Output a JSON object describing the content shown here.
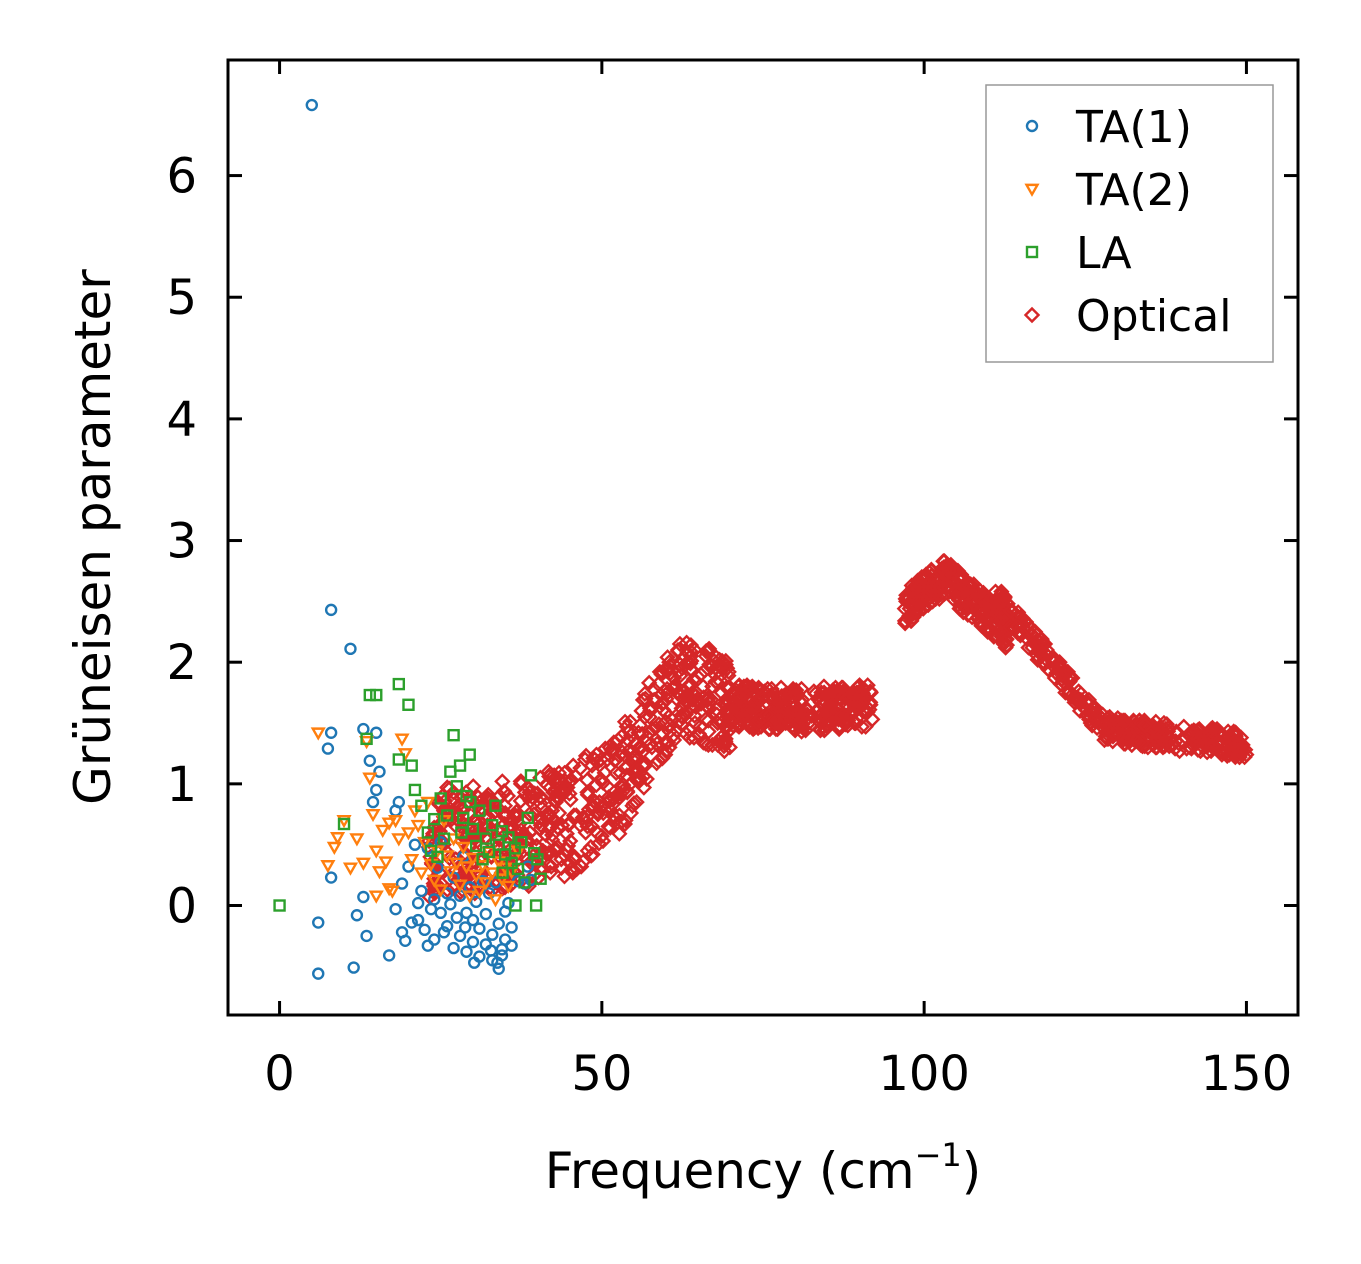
{
  "chart_data": {
    "type": "scatter",
    "xlabel": "Frequency (cm",
    "xlabel_superscript": "−1",
    "xlabel_suffix": ")",
    "ylabel": "Grüneisen parameter",
    "xlim": [
      -8,
      158
    ],
    "ylim": [
      -0.9,
      6.95
    ],
    "xticks": [
      0,
      50,
      100,
      150
    ],
    "yticks": [
      0,
      1,
      2,
      3,
      4,
      5,
      6
    ],
    "legend_position": "top-right",
    "series": [
      {
        "name": "TA(1)",
        "marker": "circle",
        "color": "#1f77b4",
        "points": [
          [
            5,
            6.58
          ],
          [
            8,
            2.43
          ],
          [
            11,
            2.11
          ],
          [
            8,
            1.42
          ],
          [
            7.5,
            1.29
          ],
          [
            13,
            1.45
          ],
          [
            15,
            1.42
          ],
          [
            14,
            1.19
          ],
          [
            15.5,
            1.1
          ],
          [
            15,
            0.95
          ],
          [
            14.5,
            0.85
          ],
          [
            8,
            0.23
          ],
          [
            6,
            -0.14
          ],
          [
            6,
            -0.56
          ],
          [
            11.5,
            -0.51
          ],
          [
            12,
            -0.08
          ],
          [
            13,
            0.07
          ],
          [
            13.5,
            -0.25
          ],
          [
            17,
            -0.41
          ],
          [
            18,
            -0.03
          ],
          [
            18,
            0.78
          ],
          [
            18.5,
            0.85
          ],
          [
            19,
            0.18
          ],
          [
            19,
            -0.22
          ],
          [
            19.5,
            -0.29
          ],
          [
            20,
            0.32
          ],
          [
            20.5,
            -0.14
          ],
          [
            21,
            0.5
          ],
          [
            21.5,
            0.02
          ],
          [
            21.5,
            -0.12
          ],
          [
            22,
            0.12
          ],
          [
            22.5,
            -0.2
          ],
          [
            23,
            0.47
          ],
          [
            23,
            -0.33
          ],
          [
            23.5,
            -0.03
          ],
          [
            24,
            0.05
          ],
          [
            24,
            -0.28
          ],
          [
            24.5,
            0.31
          ],
          [
            25,
            0.52
          ],
          [
            25,
            -0.06
          ],
          [
            25.5,
            -0.22
          ],
          [
            26,
            0.1
          ],
          [
            26,
            -0.17
          ],
          [
            26.5,
            0.01
          ],
          [
            27,
            0.23
          ],
          [
            27,
            -0.35
          ],
          [
            27.5,
            -0.1
          ],
          [
            28,
            0.08
          ],
          [
            28,
            -0.25
          ],
          [
            28.5,
            0.4
          ],
          [
            29,
            -0.06
          ],
          [
            29,
            -0.38
          ],
          [
            29.5,
            0.15
          ],
          [
            30,
            -0.12
          ],
          [
            30,
            -0.3
          ],
          [
            30.5,
            0.03
          ],
          [
            31,
            -0.19
          ],
          [
            31,
            -0.42
          ],
          [
            31.5,
            0.2
          ],
          [
            32,
            -0.07
          ],
          [
            32,
            -0.32
          ],
          [
            32.5,
            0.1
          ],
          [
            33,
            -0.24
          ],
          [
            33,
            -0.45
          ],
          [
            33.5,
            0.19
          ],
          [
            34,
            -0.15
          ],
          [
            34,
            -0.52
          ],
          [
            34.5,
            -0.36
          ],
          [
            35,
            -0.05
          ],
          [
            35,
            -0.28
          ],
          [
            35.5,
            0.02
          ],
          [
            36,
            -0.18
          ],
          [
            36,
            -0.33
          ],
          [
            37,
            0.2
          ],
          [
            38,
            0.18
          ],
          [
            38.5,
            0.32
          ],
          [
            39,
            0.21
          ],
          [
            34.5,
            -0.41
          ],
          [
            33.8,
            -0.47
          ],
          [
            32.8,
            -0.37
          ],
          [
            30.2,
            -0.47
          ],
          [
            28.8,
            -0.18
          ]
        ]
      },
      {
        "name": "TA(2)",
        "marker": "triangle-down",
        "color": "#ff7f0e",
        "points": [
          [
            6,
            1.42
          ],
          [
            7.5,
            0.33
          ],
          [
            8.5,
            0.48
          ],
          [
            9,
            0.56
          ],
          [
            10,
            0.7
          ],
          [
            11,
            0.31
          ],
          [
            12,
            0.55
          ],
          [
            13,
            0.35
          ],
          [
            13.5,
            1.35
          ],
          [
            14,
            1.05
          ],
          [
            14.5,
            0.75
          ],
          [
            15,
            0.45
          ],
          [
            15.5,
            0.28
          ],
          [
            16,
            0.62
          ],
          [
            16.5,
            0.36
          ],
          [
            17,
            0.68
          ],
          [
            17.5,
            0.12
          ],
          [
            18,
            0.7
          ],
          [
            18.5,
            0.55
          ],
          [
            19,
            1.37
          ],
          [
            19.5,
            1.25
          ],
          [
            20,
            0.6
          ],
          [
            20.5,
            0.38
          ],
          [
            21,
            0.78
          ],
          [
            21.5,
            0.66
          ],
          [
            22,
            0.27
          ],
          [
            22.5,
            0.52
          ],
          [
            23,
            0.85
          ],
          [
            23.5,
            0.34
          ],
          [
            24,
            0.21
          ],
          [
            24.5,
            0.45
          ],
          [
            25,
            0.13
          ],
          [
            25.5,
            0.7
          ],
          [
            26,
            0.41
          ],
          [
            26.5,
            0.28
          ],
          [
            27,
            0.55
          ],
          [
            27.5,
            0.35
          ],
          [
            28,
            0.17
          ],
          [
            28.5,
            0.48
          ],
          [
            29,
            0.32
          ],
          [
            29.5,
            0.08
          ],
          [
            30,
            0.39
          ],
          [
            30.5,
            0.25
          ],
          [
            31,
            0.12
          ],
          [
            31.5,
            0.33
          ],
          [
            32,
            0.19
          ],
          [
            32.5,
            0.44
          ],
          [
            33,
            0.27
          ],
          [
            33.5,
            0.05
          ],
          [
            34,
            0.36
          ],
          [
            34.5,
            0.22
          ],
          [
            35,
            0.31
          ],
          [
            35.5,
            0.16
          ],
          [
            36,
            0.28
          ],
          [
            15,
            0.08
          ],
          [
            17,
            0.14
          ],
          [
            37,
            0.45
          ]
        ]
      },
      {
        "name": "LA",
        "marker": "square",
        "color": "#2ca02c",
        "points": [
          [
            0,
            0.0
          ],
          [
            10,
            0.67
          ],
          [
            13.5,
            1.37
          ],
          [
            14,
            1.73
          ],
          [
            15,
            1.73
          ],
          [
            18.5,
            1.82
          ],
          [
            20,
            1.65
          ],
          [
            18.5,
            1.2
          ],
          [
            20.5,
            1.15
          ],
          [
            21,
            0.95
          ],
          [
            22,
            0.82
          ],
          [
            23,
            0.6
          ],
          [
            23.5,
            0.45
          ],
          [
            24,
            0.71
          ],
          [
            24.5,
            0.4
          ],
          [
            25,
            0.88
          ],
          [
            25.5,
            0.55
          ],
          [
            26,
            0.74
          ],
          [
            26.5,
            1.1
          ],
          [
            27,
            1.4
          ],
          [
            27.5,
            0.98
          ],
          [
            28,
            1.15
          ],
          [
            28.5,
            0.72
          ],
          [
            29,
            0.9
          ],
          [
            29.5,
            1.24
          ],
          [
            30,
            0.63
          ],
          [
            30.5,
            0.49
          ],
          [
            31,
            0.78
          ],
          [
            31.5,
            0.38
          ],
          [
            32,
            0.55
          ],
          [
            32.5,
            0.44
          ],
          [
            33,
            0.66
          ],
          [
            33.5,
            0.82
          ],
          [
            34,
            0.5
          ],
          [
            34.5,
            0.61
          ],
          [
            35,
            0.42
          ],
          [
            35.5,
            0.56
          ],
          [
            36,
            0.35
          ],
          [
            36.5,
            0.47
          ],
          [
            37,
            0.3
          ],
          [
            37.5,
            0.52
          ],
          [
            38,
            0.19
          ],
          [
            38.5,
            0.72
          ],
          [
            39,
            1.07
          ],
          [
            39.5,
            0.43
          ],
          [
            40,
            0.38
          ],
          [
            40.5,
            0.22
          ],
          [
            39.8,
            0.0
          ],
          [
            36.6,
            0.0
          ],
          [
            34.6,
            0.27
          ],
          [
            29.6,
            0.85
          ],
          [
            28.2,
            0.6
          ]
        ]
      },
      {
        "name": "Optical",
        "marker": "diamond",
        "color": "#d62728",
        "points": []
      }
    ]
  }
}
